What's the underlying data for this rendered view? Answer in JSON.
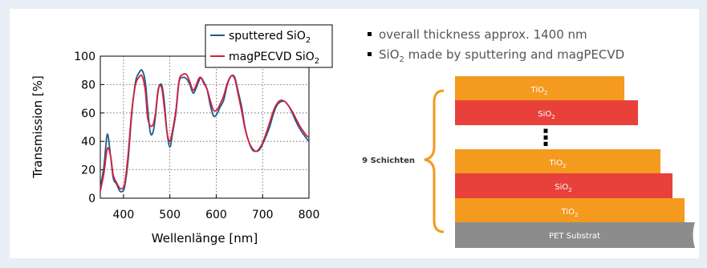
{
  "chart_data": {
    "type": "line",
    "xlabel": "Wellenlänge [nm]",
    "ylabel": "Transmission [%]",
    "xlim": [
      350,
      800
    ],
    "ylim": [
      0,
      100
    ],
    "xticks": [
      400,
      500,
      600,
      700,
      800
    ],
    "yticks": [
      0,
      20,
      40,
      60,
      80,
      100
    ],
    "grid": "dotted",
    "legend_position": "top",
    "series": [
      {
        "name": "sputtered SiO2",
        "color": "#1d5d8a",
        "x": [
          350,
          358,
          365,
          372,
          378,
          385,
          392,
          398,
          403,
          410,
          418,
          426,
          433,
          440,
          447,
          452,
          458,
          464,
          469,
          475,
          482,
          488,
          494,
          500,
          506,
          513,
          520,
          528,
          536,
          543,
          550,
          556,
          562,
          567,
          573,
          580,
          587,
          594,
          601,
          608,
          616,
          624,
          632,
          640,
          648,
          655,
          662,
          670,
          678,
          686,
          693,
          700,
          708,
          716,
          724,
          732,
          740,
          748,
          756,
          764,
          772,
          780,
          788,
          795,
          800
        ],
        "y": [
          7,
          23,
          45,
          30,
          14,
          10,
          5,
          5,
          9,
          27,
          60,
          82,
          88,
          90,
          82,
          64,
          46,
          47,
          58,
          76,
          80,
          68,
          46,
          36,
          46,
          60,
          82,
          85,
          84,
          80,
          74,
          77,
          82,
          85,
          82,
          77,
          66,
          58,
          59,
          64,
          69,
          80,
          86,
          85,
          74,
          64,
          50,
          40,
          34,
          33,
          34,
          38,
          44,
          51,
          60,
          66,
          68,
          68,
          65,
          60,
          54,
          49,
          45,
          42,
          40
        ]
      },
      {
        "name": "magPECVD SiO2",
        "color": "#d5203e",
        "x": [
          350,
          358,
          365,
          372,
          378,
          385,
          392,
          398,
          403,
          410,
          418,
          426,
          433,
          440,
          447,
          452,
          458,
          464,
          469,
          475,
          482,
          488,
          494,
          500,
          506,
          513,
          520,
          528,
          536,
          543,
          550,
          556,
          562,
          567,
          573,
          580,
          587,
          594,
          601,
          608,
          616,
          624,
          632,
          640,
          648,
          655,
          662,
          670,
          678,
          686,
          693,
          700,
          708,
          716,
          724,
          732,
          740,
          748,
          756,
          764,
          772,
          780,
          788,
          795,
          800
        ],
        "y": [
          5,
          18,
          35,
          30,
          16,
          11,
          7,
          7,
          11,
          31,
          62,
          80,
          85,
          86,
          76,
          57,
          51,
          52,
          60,
          77,
          78,
          64,
          46,
          40,
          48,
          62,
          83,
          87,
          87,
          82,
          76,
          79,
          84,
          85,
          81,
          77,
          69,
          62,
          62,
          66,
          72,
          81,
          86,
          84,
          72,
          61,
          49,
          40,
          35,
          33,
          35,
          39,
          46,
          54,
          62,
          67,
          69,
          68,
          65,
          61,
          56,
          51,
          47,
          44,
          43
        ]
      }
    ],
    "legend": [
      {
        "text": "sputtered SiO",
        "sub": "2"
      },
      {
        "text": "magPECVD SiO",
        "sub": "2"
      }
    ]
  },
  "bullets": [
    {
      "text": "overall thickness approx. 1400 nm",
      "sub": "",
      "after": ""
    },
    {
      "text": "SiO",
      "sub": "2",
      "after": " made by sputtering and magPECVD"
    }
  ],
  "stack": {
    "group_label": "9 Schichten",
    "dots": "⋮",
    "layers": [
      {
        "text": "TiO",
        "sub": "2",
        "color": "#f39a1f"
      },
      {
        "text": "SiO",
        "sub": "2",
        "color": "#e8413c"
      },
      {
        "text": "TiO",
        "sub": "2",
        "color": "#f39a1f"
      },
      {
        "text": "SiO",
        "sub": "2",
        "color": "#e8413c"
      },
      {
        "text": "TiO",
        "sub": "2",
        "color": "#f39a1f"
      }
    ],
    "substrate": {
      "text": "PET Substrat",
      "color": "#8c8c8c"
    },
    "brace_color": "#f39a1f"
  }
}
